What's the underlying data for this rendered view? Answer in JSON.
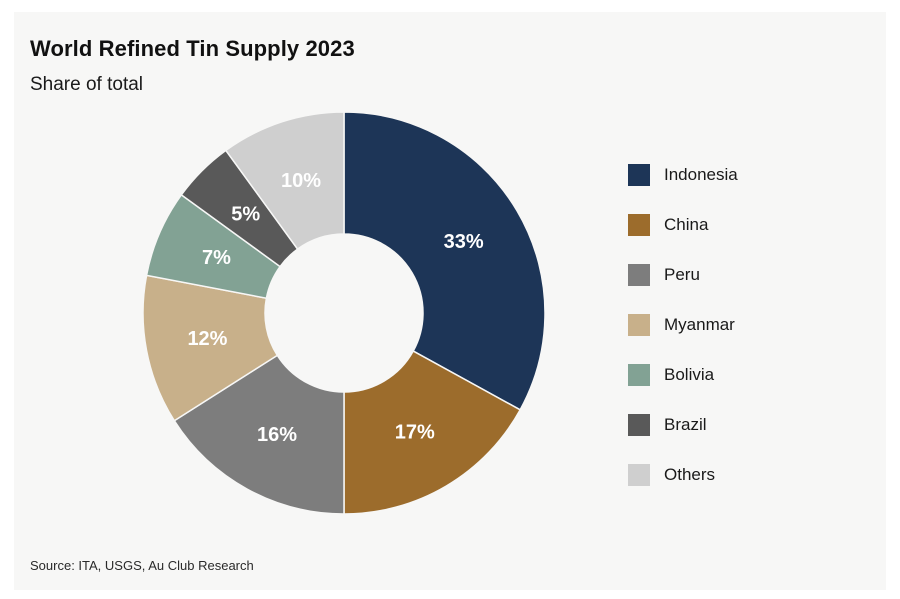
{
  "chart_data": {
    "type": "pie",
    "donut": true,
    "title": "World Refined Tin Supply 2023",
    "subtitle": "Share of total",
    "labels": [
      "Indonesia",
      "China",
      "Peru",
      "Myanmar",
      "Bolivia",
      "Brazil",
      "Others"
    ],
    "values": [
      33,
      17,
      16,
      12,
      7,
      5,
      10
    ],
    "value_labels": [
      "33%",
      "17%",
      "16%",
      "12%",
      "7%",
      "5%",
      "10%"
    ],
    "colors": [
      "#1d3557",
      "#9c6c2c",
      "#7d7d7d",
      "#c8b08a",
      "#82a294",
      "#595959",
      "#cfcfcf"
    ],
    "label_colors": [
      "#ffffff",
      "#ffffff",
      "#ffffff",
      "#ffffff",
      "#ffffff",
      "#ffffff",
      "#ffffff"
    ],
    "legend_position": "right",
    "start": "top",
    "direction": "clockwise"
  },
  "source": "Source: ITA, USGS, Au Club Research"
}
